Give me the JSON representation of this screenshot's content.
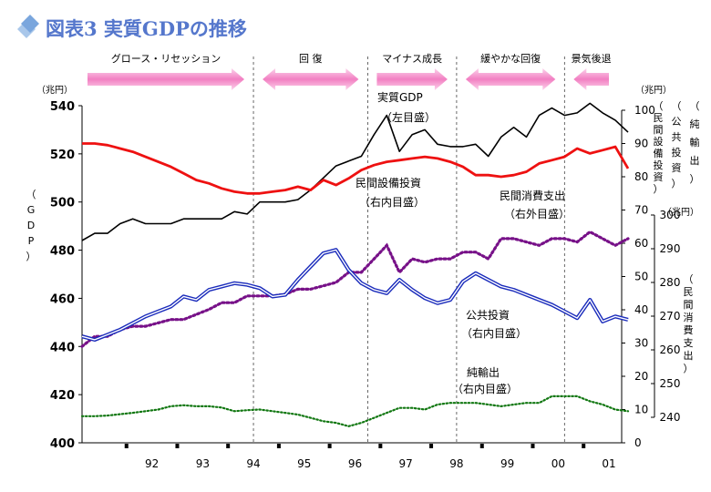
{
  "title": "図表3 実質GDPの推移",
  "phases": [
    {
      "label": "グロース・リセッション",
      "dir": "right"
    },
    {
      "label": "回 復",
      "dir": "both"
    },
    {
      "label": "マイナス成長",
      "dir": "right"
    },
    {
      "label": "緩やかな回復",
      "dir": "both"
    },
    {
      "label": "景気後退",
      "dir": "left"
    }
  ],
  "annotations": {
    "gdp": [
      "実質GDP",
      "（左目盛）"
    ],
    "investment": [
      "民間設備投資",
      "（右内目盛）"
    ],
    "consumption": [
      "民間消費支出",
      "（右外目盛）"
    ],
    "public": [
      "公共投資",
      "（右内目盛）"
    ],
    "netexports": [
      "純輸出",
      "（右内目盛）"
    ]
  },
  "axis_labels": {
    "left_unit": "（兆円）",
    "left_vertical": [
      "（",
      "G",
      "D",
      "P",
      "）"
    ],
    "right_unit": "（兆円）",
    "right_outer_unit": "（兆円）",
    "right_v1": [
      "（",
      "民",
      "間",
      "設",
      "備",
      "投",
      "資",
      "）"
    ],
    "right_v2": [
      "（",
      "公",
      "共",
      "投",
      "資",
      "）"
    ],
    "right_v3": [
      "（",
      "純",
      "輸",
      "出",
      "）"
    ],
    "right_v4": [
      "（",
      "民",
      "間",
      "消",
      "費",
      "支",
      "出",
      "）"
    ]
  },
  "chart_data": {
    "type": "line",
    "title": "図表3 実質GDPの推移",
    "x_tick_labels": [
      "92",
      "93",
      "94",
      "95",
      "96",
      "97",
      "98",
      "99",
      "00",
      "01"
    ],
    "x_start": 1991.25,
    "x_step": 0.25,
    "y_left": {
      "min": 400,
      "max": 540,
      "ticks": [
        400,
        420,
        440,
        460,
        480,
        500,
        520,
        540
      ]
    },
    "y_right_inner": {
      "min": 0,
      "max": 100,
      "ticks": [
        0,
        10,
        20,
        30,
        40,
        50,
        60,
        70,
        80,
        90,
        100
      ]
    },
    "y_right_outer": {
      "min": 240,
      "max": 300,
      "ticks": [
        240,
        250,
        260,
        270,
        280,
        290,
        300
      ]
    },
    "phase_boundaries": [
      1994.625,
      1996.875,
      1998.625,
      2000.75
    ],
    "series": [
      {
        "name": "実質GDP",
        "axis": "left",
        "color": "#000000",
        "style": "solid",
        "values": [
          484,
          487,
          487,
          491,
          493,
          491,
          491,
          491,
          493,
          493,
          493,
          493,
          496,
          495,
          500,
          500,
          500,
          501,
          505,
          510,
          515,
          517,
          519,
          528,
          536,
          521,
          528,
          530,
          524,
          523,
          523,
          524,
          519,
          527,
          531,
          527,
          536,
          539,
          536,
          537,
          541,
          537,
          534,
          529
        ]
      },
      {
        "name": "民間設備投資",
        "axis": "right_inner",
        "color": "#ee1111",
        "style": "solid",
        "values": [
          90,
          90,
          89.5,
          88.5,
          87.5,
          86,
          84.5,
          83,
          81,
          79,
          78,
          76.5,
          75.5,
          75,
          75,
          75.5,
          76,
          77,
          76,
          79,
          77.5,
          79.5,
          82,
          83.5,
          84.5,
          85,
          85.5,
          86,
          85.5,
          84.5,
          83,
          80.5,
          80.5,
          80,
          80.5,
          81.5,
          84,
          85,
          86,
          88.5,
          87,
          88,
          89,
          82.5
        ]
      },
      {
        "name": "民間消費支出",
        "axis": "right_outer",
        "color": "#771188",
        "style": "dotted",
        "values": [
          261,
          264,
          264,
          266,
          267,
          267,
          268,
          269,
          269,
          270.5,
          272,
          274,
          274,
          276,
          276,
          276,
          276.5,
          278,
          278,
          279,
          280,
          283,
          283,
          287,
          291,
          283,
          287,
          286,
          287,
          287,
          289,
          289,
          287,
          293,
          293,
          292,
          291,
          293,
          293,
          292,
          295,
          293,
          291,
          293
        ]
      },
      {
        "name": "公共投資",
        "axis": "right_inner",
        "color": "#1a2bbb",
        "style": "double",
        "values": [
          32,
          31,
          32.5,
          34,
          36,
          38,
          39.5,
          41,
          44,
          43,
          46,
          47,
          48,
          47.5,
          46.5,
          44,
          44.5,
          49,
          53,
          57,
          58,
          52,
          48,
          46,
          45,
          49,
          46,
          43.5,
          42,
          43,
          48.5,
          51,
          49,
          47,
          46,
          44.5,
          43,
          41.5,
          39.5,
          37.5,
          43,
          36.5,
          38,
          37
        ]
      },
      {
        "name": "純輸出",
        "axis": "right_inner",
        "color": "#117711",
        "style": "dotted",
        "values": [
          8,
          8,
          8.2,
          8.6,
          9,
          9.5,
          10,
          11,
          11.3,
          11,
          11,
          10.6,
          9.5,
          9.8,
          10,
          9.5,
          9,
          8.5,
          7.5,
          6.5,
          6,
          5,
          6,
          7.5,
          9,
          10.5,
          10.5,
          10,
          11.5,
          12,
          12,
          12,
          11.5,
          11,
          11.5,
          12,
          12,
          14,
          14,
          14,
          12.5,
          11.5,
          10,
          9.5
        ]
      }
    ]
  }
}
